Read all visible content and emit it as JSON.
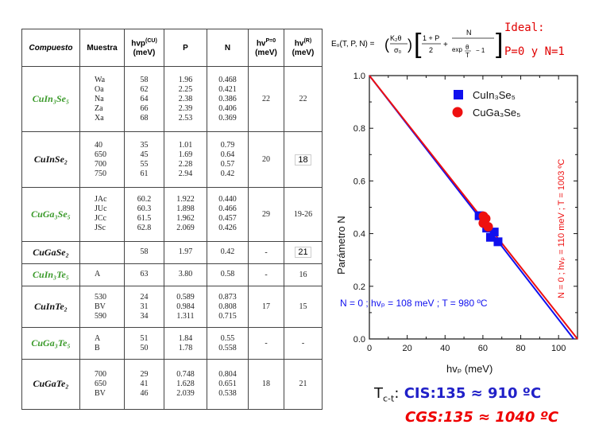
{
  "table": {
    "headers": [
      "Compuesto",
      "Muestra",
      "hνₚ(CU)",
      "(meV)",
      "P",
      "N",
      "hνᴾ⁼⁰",
      "(meV)",
      "hν⁽ᴿ⁾",
      "(meV)"
    ],
    "header_labels": {
      "compuesto": "Compuesto",
      "muestra": "Muestra",
      "hvp": "hvp",
      "hvp_sup": "(CU)",
      "hvp_unit": "(meV)",
      "p": "P",
      "n": "N",
      "hv0": "hv",
      "hv0_sup": "P=0",
      "hv0_unit": "(meV)",
      "hvr": "hv",
      "hvr_sup": "(R)",
      "hvr_unit": "(meV)"
    },
    "rows": [
      {
        "compound": "CuIn₃Se₅",
        "color": "green",
        "samples": [
          "Wa",
          "Oa",
          "Na",
          "Za",
          "Xa"
        ],
        "hvp": [
          "58",
          "62",
          "64",
          "66",
          "68"
        ],
        "p": [
          "1.96",
          "2.25",
          "2.38",
          "2.39",
          "2.53"
        ],
        "n": [
          "0.468",
          "0.421",
          "0.386",
          "0.406",
          "0.369"
        ],
        "hv0": "22",
        "hvr": "22"
      },
      {
        "compound": "CuInSe₂",
        "color": "black",
        "samples": [
          "40",
          "650",
          "700",
          "750"
        ],
        "hvp": [
          "35",
          "45",
          "55",
          "61"
        ],
        "p": [
          "1.01",
          "1.69",
          "2.28",
          "2.94"
        ],
        "n": [
          "0.79",
          "0.64",
          "0.57",
          "0.42"
        ],
        "hv0": "20",
        "hvr": "18"
      },
      {
        "compound": "CuGa₃Se₅",
        "color": "green",
        "samples": [
          "JAc",
          "JUc",
          "JCc",
          "JSc"
        ],
        "hvp": [
          "60.2",
          "60.3",
          "61.5",
          "62.8"
        ],
        "p": [
          "1.922",
          "1.898",
          "1.962",
          "2.069"
        ],
        "n": [
          "0.440",
          "0.466",
          "0.457",
          "0.426"
        ],
        "hv0": "29",
        "hvr": "19-26"
      },
      {
        "compound": "CuGaSe₂",
        "color": "black",
        "samples": [],
        "hvp": [
          "58"
        ],
        "p": [
          "1.97"
        ],
        "n": [
          "0.42"
        ],
        "hv0": "-",
        "hvr": "21"
      },
      {
        "compound": "CuIn₃Te₅",
        "color": "green",
        "samples": [
          "A"
        ],
        "hvp": [
          "63"
        ],
        "p": [
          "3.80"
        ],
        "n": [
          "0.58"
        ],
        "hv0": "-",
        "hvr": "16"
      },
      {
        "compound": "CuInTe₂",
        "color": "black",
        "samples": [
          "530",
          "BV",
          "590"
        ],
        "hvp": [
          "24",
          "31",
          "34"
        ],
        "p": [
          "0.589",
          "0.984",
          "1.311"
        ],
        "n": [
          "0.873",
          "0.808",
          "0.715"
        ],
        "hv0": "17",
        "hvr": "15"
      },
      {
        "compound": "CuGa₃Te₅",
        "color": "green",
        "samples": [
          "A",
          "B"
        ],
        "hvp": [
          "51",
          "50"
        ],
        "p": [
          "1.84",
          "1.78"
        ],
        "n": [
          "0.55",
          "0.558"
        ],
        "hv0": "-",
        "hvr": "-"
      },
      {
        "compound": "CuGaTe₂",
        "color": "black",
        "samples": [
          "700",
          "650",
          "BV"
        ],
        "hvp": [
          "29",
          "41",
          "46"
        ],
        "p": [
          "0.748",
          "1.628",
          "2.039"
        ],
        "n": [
          "0.804",
          "0.651",
          "0.538"
        ],
        "hv0": "18",
        "hvr": "21"
      }
    ]
  },
  "formula": {
    "lhs": "Eᵤ(T, P, N) =",
    "k_theta": "K₂θ",
    "sigma0": "σ₀",
    "one_plus_p": "1 + P",
    "two": "2",
    "plus": "+",
    "n": "N",
    "exp_den": "exp",
    "theta": "θ",
    "t": "T",
    "minus_one": "− 1"
  },
  "ideal": {
    "line1": "Ideal:",
    "line2": "P=0 y N=1"
  },
  "chart_data": {
    "type": "scatter",
    "title": "",
    "xlabel": "hvₚ (meV)",
    "ylabel": "Parámetro N",
    "xlim": [
      0,
      110
    ],
    "ylim": [
      0,
      1.0
    ],
    "xticks": [
      "0",
      "20",
      "40",
      "60",
      "80",
      "100"
    ],
    "yticks": [
      "0.0",
      "0.2",
      "0.4",
      "0.6",
      "0.8",
      "1.0"
    ],
    "series": [
      {
        "name": "CuIn₃Se₅",
        "color": "#1010ee",
        "marker": "square",
        "x": [
          58,
          62,
          64,
          66,
          68
        ],
        "y": [
          0.468,
          0.421,
          0.386,
          0.406,
          0.369
        ]
      },
      {
        "name": "CuGa₃Se₅",
        "color": "#ee1010",
        "marker": "circle",
        "x": [
          60.2,
          60.3,
          61.5,
          62.8
        ],
        "y": [
          0.44,
          0.466,
          0.457,
          0.426
        ]
      }
    ],
    "lines": [
      {
        "name": "blue-fit",
        "color": "#1010ee",
        "x": [
          0,
          108
        ],
        "y": [
          1.0,
          0.0
        ]
      },
      {
        "name": "red-fit",
        "color": "#ee1010",
        "x": [
          0,
          110
        ],
        "y": [
          1.0,
          0.0
        ]
      }
    ],
    "annotations": {
      "blue": "N = 0 ;  hvₚ = 108 meV ;  T = 980 ºC",
      "red": "N = 0 ; hvₚ = 110 meV ; T = 1003 ºC"
    }
  },
  "result": {
    "tct_prefix": "T",
    "tct_sub": "c-t",
    "tct_colon": ":",
    "cis": "CIS:135 ≈ 910 ºC",
    "cgs": "CGS:135 ≈ 1040 ºC"
  }
}
